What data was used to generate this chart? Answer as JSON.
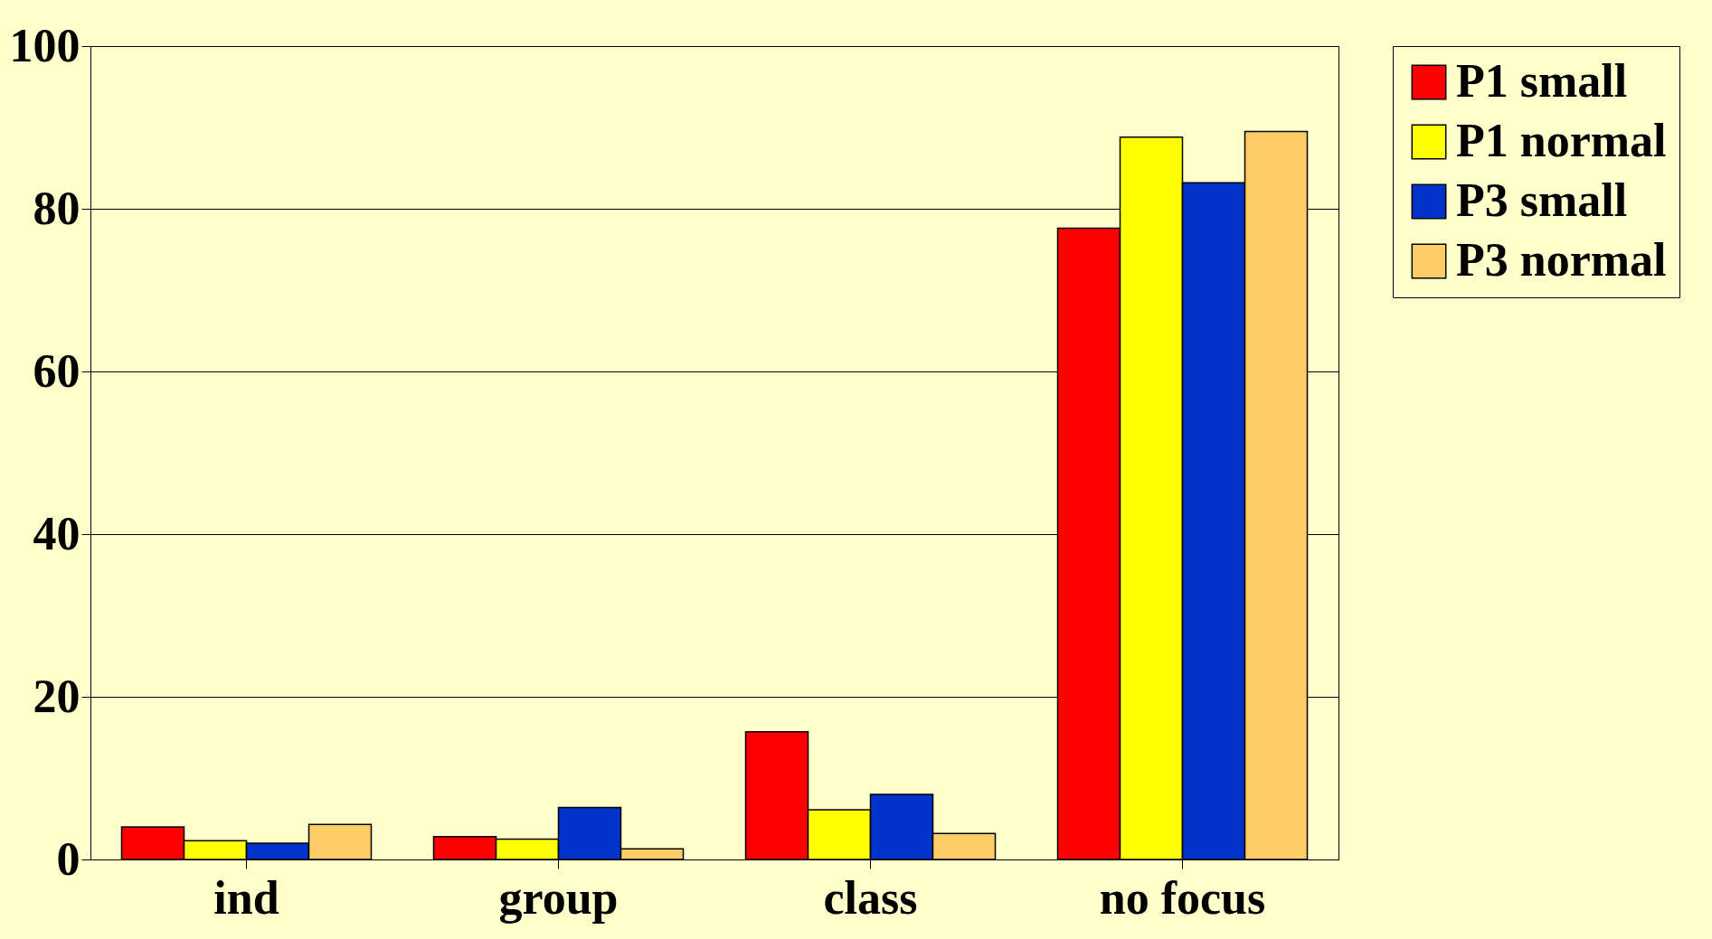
{
  "chart_data": {
    "type": "bar",
    "categories": [
      "ind",
      "group",
      "class",
      "no focus"
    ],
    "series": [
      {
        "name": "P1 small",
        "color": "#ff0000",
        "values": [
          4,
          2.8,
          15.7,
          77.6
        ]
      },
      {
        "name": "P1 normal",
        "color": "#ffff00",
        "values": [
          2.3,
          2.5,
          6.1,
          88.8
        ]
      },
      {
        "name": "P3 small",
        "color": "#0033cc",
        "values": [
          2,
          6.4,
          8,
          83.2
        ]
      },
      {
        "name": "P3 normal",
        "color": "#ffcc66",
        "values": [
          4.3,
          1.3,
          3.2,
          89.5
        ]
      }
    ],
    "ylim": [
      0,
      100
    ],
    "yticks": [
      0,
      20,
      40,
      60,
      80,
      100
    ],
    "grid": "y",
    "legend": "right"
  }
}
